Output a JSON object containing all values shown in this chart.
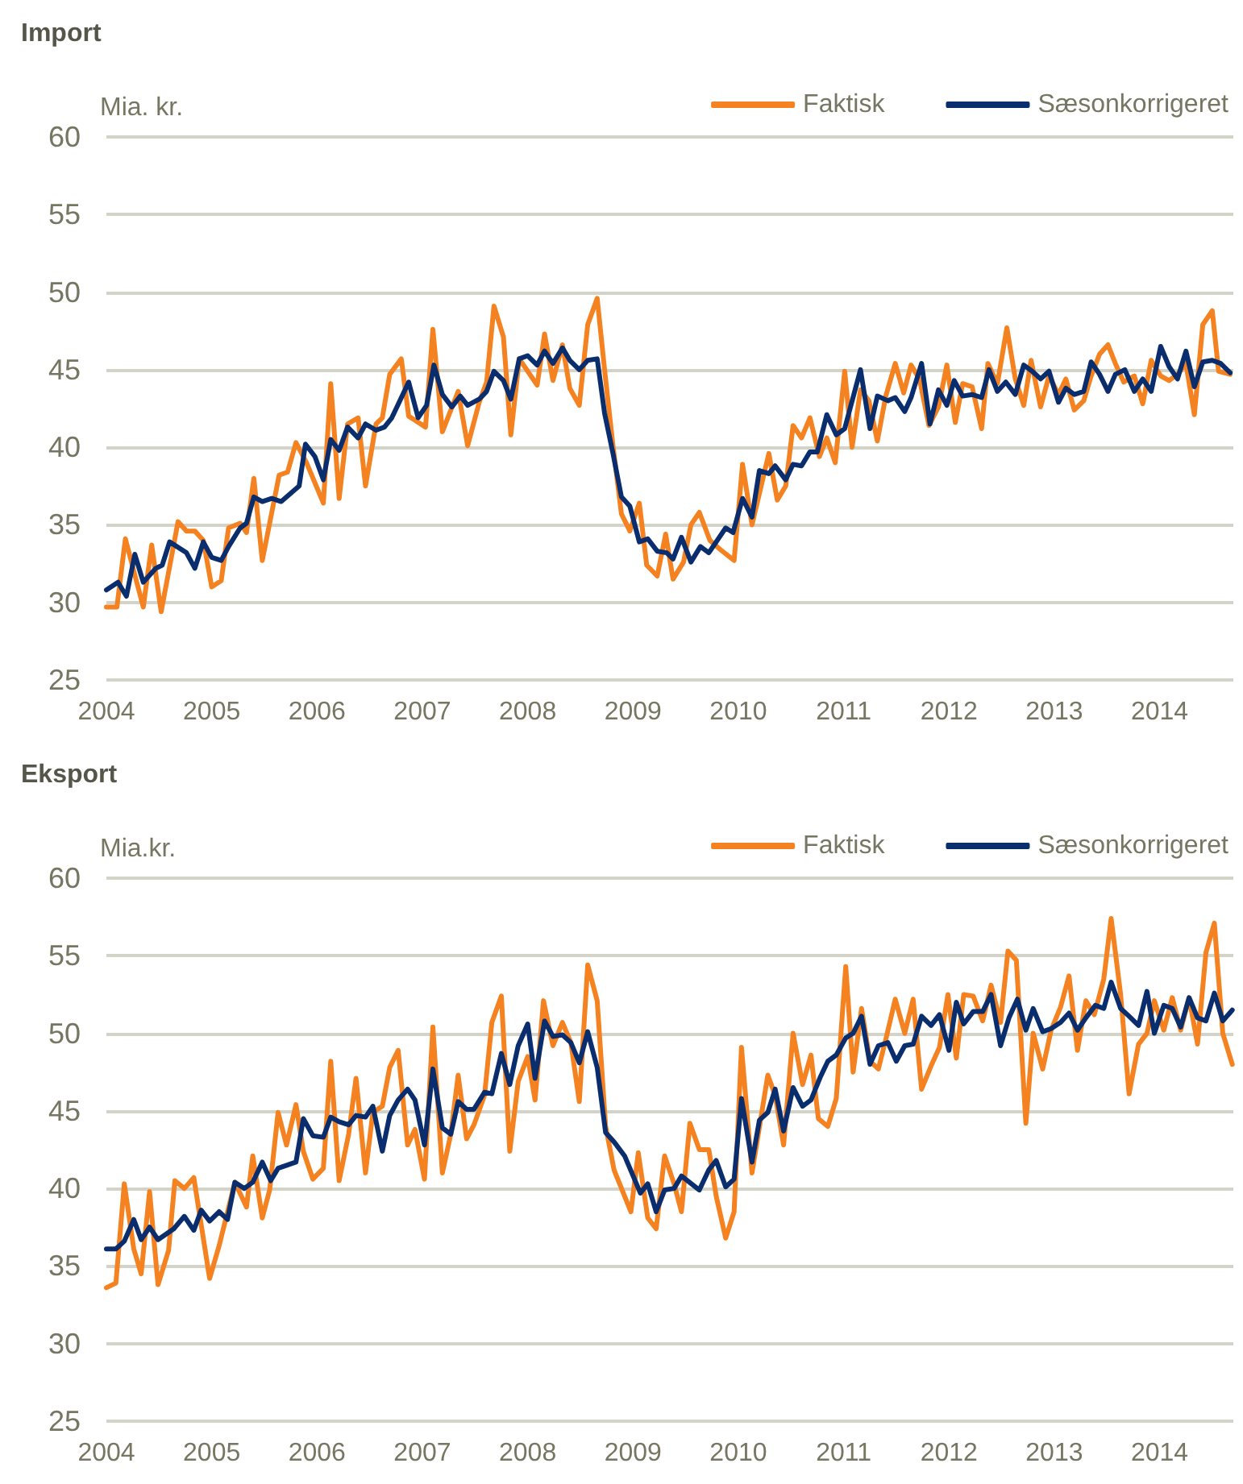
{
  "chart_data": [
    {
      "type": "line",
      "title": "Import",
      "ylabel": "Mia. kr.",
      "xlim": [
        2004,
        2014.7
      ],
      "xticks": [
        2004,
        2005,
        2006,
        2007,
        2008,
        2009,
        2010,
        2011,
        2012,
        2013,
        2014
      ],
      "ylim": [
        25,
        60
      ],
      "yticks": [
        25,
        30,
        35,
        40,
        45,
        50,
        55,
        60
      ],
      "grid": "y",
      "legend": "top right",
      "line_style": "solid",
      "series": [
        {
          "name": "Faktisk",
          "color": "#f58220",
          "x": [
            2004.0,
            2004.1,
            2004.18,
            2004.35,
            2004.43,
            2004.52,
            2004.68,
            2004.76,
            2004.84,
            2004.92,
            2005.0,
            2005.09,
            2005.16,
            2005.27,
            2005.33,
            2005.4,
            2005.48,
            2005.64,
            2005.72,
            2005.8,
            2005.9,
            2006.06,
            2006.13,
            2006.21,
            2006.29,
            2006.39,
            2006.46,
            2006.56,
            2006.62,
            2006.69,
            2006.8,
            2006.87,
            2007.03,
            2007.1,
            2007.19,
            2007.34,
            2007.43,
            2007.54,
            2007.61,
            2007.68,
            2007.77,
            2007.84,
            2007.92,
            2008.0,
            2008.09,
            2008.16,
            2008.24,
            2008.33,
            2008.4,
            2008.49,
            2008.57,
            2008.66,
            2008.73,
            2008.81,
            2008.89,
            2008.97,
            2009.06,
            2009.13,
            2009.23,
            2009.31,
            2009.38,
            2009.48,
            2009.55,
            2009.63,
            2009.73,
            2009.83,
            2009.96,
            2010.04,
            2010.13,
            2010.29,
            2010.37,
            2010.45,
            2010.52,
            2010.6,
            2010.68,
            2010.77,
            2010.84,
            2010.92,
            2011.01,
            2011.08,
            2011.16,
            2011.24,
            2011.32,
            2011.4,
            2011.49,
            2011.57,
            2011.64,
            2011.72,
            2011.81,
            2011.9,
            2011.98,
            2012.06,
            2012.13,
            2012.22,
            2012.31,
            2012.37,
            2012.46,
            2012.55,
            2012.63,
            2012.71,
            2012.78,
            2012.87,
            2012.95,
            2013.04,
            2013.11,
            2013.19,
            2013.28,
            2013.35,
            2013.43,
            2013.51,
            2013.58,
            2013.66,
            2013.76,
            2013.84,
            2013.92,
            2014.01,
            2014.09,
            2014.17,
            2014.25,
            2014.33,
            2014.41,
            2014.5,
            2014.56,
            2014.67
          ],
          "values": [
            29.7,
            29.7,
            34.1,
            29.7,
            33.7,
            29.4,
            35.2,
            34.6,
            34.6,
            34.0,
            31.0,
            31.4,
            34.8,
            35.1,
            34.5,
            38.0,
            32.7,
            38.2,
            38.4,
            40.3,
            39.0,
            36.4,
            44.1,
            36.7,
            41.5,
            41.9,
            37.5,
            41.5,
            41.9,
            44.7,
            45.7,
            42.0,
            41.3,
            47.6,
            41.0,
            43.6,
            40.1,
            42.9,
            44.2,
            49.1,
            47.1,
            40.8,
            45.7,
            44.9,
            44.0,
            47.3,
            44.3,
            46.6,
            43.8,
            42.7,
            47.9,
            49.6,
            45.0,
            40.1,
            35.7,
            34.6,
            36.4,
            32.4,
            31.7,
            34.4,
            31.5,
            32.6,
            35.0,
            35.8,
            34.0,
            33.4,
            32.7,
            38.9,
            35.0,
            39.6,
            36.6,
            37.5,
            41.4,
            40.6,
            41.9,
            39.4,
            40.6,
            39.0,
            44.9,
            40.0,
            43.7,
            43.0,
            40.4,
            43.3,
            45.4,
            43.5,
            45.3,
            44.4,
            41.4,
            42.6,
            45.3,
            41.6,
            44.1,
            43.9,
            41.2,
            45.4,
            44.1,
            47.7,
            44.4,
            42.7,
            45.6,
            42.6,
            44.6,
            43.4,
            44.4,
            42.4,
            43.0,
            44.6,
            46.0,
            46.6,
            45.4,
            44.2,
            44.6,
            42.8,
            45.6,
            44.6,
            44.3,
            44.7,
            45.4,
            42.1,
            47.9,
            48.8,
            44.9,
            44.7
          ]
        },
        {
          "name": "Sæsonkorrigeret",
          "color": "#0a2d6e",
          "x": [
            2004.0,
            2004.11,
            2004.19,
            2004.27,
            2004.35,
            2004.47,
            2004.53,
            2004.6,
            2004.76,
            2004.84,
            2004.92,
            2005.0,
            2005.09,
            2005.16,
            2005.27,
            2005.33,
            2005.4,
            2005.48,
            2005.57,
            2005.66,
            2005.83,
            2005.89,
            2005.98,
            2006.06,
            2006.13,
            2006.21,
            2006.29,
            2006.39,
            2006.46,
            2006.56,
            2006.64,
            2006.71,
            2006.87,
            2006.96,
            2007.04,
            2007.11,
            2007.19,
            2007.28,
            2007.36,
            2007.43,
            2007.54,
            2007.61,
            2007.68,
            2007.77,
            2007.84,
            2007.92,
            2008.0,
            2008.09,
            2008.16,
            2008.24,
            2008.33,
            2008.4,
            2008.49,
            2008.57,
            2008.66,
            2008.73,
            2008.81,
            2008.89,
            2008.97,
            2009.06,
            2009.14,
            2009.23,
            2009.32,
            2009.38,
            2009.46,
            2009.55,
            2009.64,
            2009.72,
            2009.88,
            2009.95,
            2010.04,
            2010.13,
            2010.2,
            2010.29,
            2010.35,
            2010.45,
            2010.52,
            2010.6,
            2010.68,
            2010.75,
            2010.84,
            2010.93,
            2011.01,
            2011.16,
            2011.25,
            2011.32,
            2011.42,
            2011.49,
            2011.58,
            2011.64,
            2011.74,
            2011.82,
            2011.9,
            2011.98,
            2012.05,
            2012.13,
            2012.22,
            2012.31,
            2012.38,
            2012.46,
            2012.54,
            2012.63,
            2012.71,
            2012.79,
            2012.87,
            2012.95,
            2013.04,
            2013.11,
            2013.19,
            2013.28,
            2013.35,
            2013.43,
            2013.51,
            2013.58,
            2013.67,
            2013.76,
            2013.84,
            2013.92,
            2014.01,
            2014.09,
            2014.17,
            2014.25,
            2014.33,
            2014.41,
            2014.5,
            2014.58,
            2014.67
          ],
          "values": [
            30.8,
            31.3,
            30.4,
            33.1,
            31.3,
            32.2,
            32.4,
            33.9,
            33.2,
            32.2,
            33.9,
            32.9,
            32.7,
            33.6,
            34.8,
            35.1,
            36.8,
            36.5,
            36.7,
            36.5,
            37.5,
            40.2,
            39.4,
            37.9,
            40.5,
            39.8,
            41.3,
            40.6,
            41.5,
            41.1,
            41.3,
            41.9,
            44.2,
            41.9,
            42.7,
            45.3,
            43.4,
            42.6,
            43.3,
            42.7,
            43.1,
            43.6,
            44.9,
            44.3,
            43.1,
            45.7,
            45.9,
            45.3,
            46.2,
            45.4,
            46.4,
            45.6,
            45.0,
            45.6,
            45.7,
            42.2,
            39.6,
            36.8,
            36.2,
            33.9,
            34.1,
            33.3,
            33.2,
            32.8,
            34.2,
            32.6,
            33.6,
            33.2,
            34.8,
            34.5,
            36.7,
            35.5,
            38.5,
            38.3,
            38.8,
            37.9,
            38.9,
            38.8,
            39.7,
            39.7,
            42.1,
            40.8,
            41.2,
            45.0,
            41.2,
            43.3,
            43.0,
            43.2,
            42.3,
            43.2,
            45.4,
            41.5,
            43.7,
            42.7,
            44.3,
            43.3,
            43.4,
            43.2,
            45.0,
            43.6,
            44.2,
            43.4,
            45.3,
            44.9,
            44.4,
            44.9,
            42.9,
            43.8,
            43.4,
            43.6,
            45.5,
            44.7,
            43.6,
            44.7,
            45.0,
            43.6,
            44.4,
            43.6,
            46.5,
            45.2,
            44.4,
            46.2,
            43.9,
            45.5,
            45.6,
            45.4,
            44.8
          ]
        }
      ]
    },
    {
      "type": "line",
      "title": "Eksport",
      "ylabel": "Mia.kr.",
      "xlim": [
        2004,
        2014.7
      ],
      "xticks": [
        2004,
        2005,
        2006,
        2007,
        2008,
        2009,
        2010,
        2011,
        2012,
        2013,
        2014
      ],
      "ylim": [
        25,
        60
      ],
      "yticks": [
        25,
        30,
        35,
        40,
        45,
        50,
        55,
        60
      ],
      "grid": "y",
      "legend": "top right",
      "line_style": "solid",
      "series": [
        {
          "name": "Faktisk",
          "color": "#f58220",
          "x": [
            2004.0,
            2004.09,
            2004.17,
            2004.26,
            2004.33,
            2004.41,
            2004.49,
            2004.59,
            2004.65,
            2004.74,
            2004.83,
            2004.89,
            2004.98,
            2005.07,
            2005.22,
            2005.33,
            2005.39,
            2005.48,
            2005.55,
            2005.63,
            2005.71,
            2005.8,
            2005.87,
            2005.96,
            2006.06,
            2006.13,
            2006.21,
            2006.3,
            2006.37,
            2006.46,
            2006.53,
            2006.62,
            2006.69,
            2006.77,
            2006.86,
            2006.93,
            2007.02,
            2007.1,
            2007.19,
            2007.27,
            2007.34,
            2007.42,
            2007.49,
            2007.59,
            2007.66,
            2007.75,
            2007.83,
            2007.91,
            2008.0,
            2008.07,
            2008.15,
            2008.24,
            2008.33,
            2008.41,
            2008.49,
            2008.57,
            2008.66,
            2008.74,
            2008.82,
            2008.98,
            2009.05,
            2009.14,
            2009.22,
            2009.3,
            2009.39,
            2009.46,
            2009.54,
            2009.63,
            2009.72,
            2009.79,
            2009.88,
            2009.96,
            2010.03,
            2010.13,
            2010.28,
            2010.35,
            2010.43,
            2010.52,
            2010.61,
            2010.69,
            2010.76,
            2010.85,
            2010.93,
            2011.02,
            2011.09,
            2011.17,
            2011.25,
            2011.33,
            2011.4,
            2011.49,
            2011.58,
            2011.66,
            2011.74,
            2011.83,
            2011.91,
            2011.99,
            2012.07,
            2012.14,
            2012.23,
            2012.32,
            2012.4,
            2012.49,
            2012.56,
            2012.64,
            2012.73,
            2012.8,
            2012.89,
            2012.97,
            2013.06,
            2013.14,
            2013.22,
            2013.3,
            2013.38,
            2013.47,
            2013.54,
            2013.63,
            2013.71,
            2013.8,
            2013.88,
            2013.95,
            2014.04,
            2014.12,
            2014.2,
            2014.28,
            2014.36,
            2014.44,
            2014.52,
            2014.6,
            2014.69
          ],
          "values": [
            33.6,
            33.9,
            40.3,
            36.1,
            34.5,
            39.8,
            33.8,
            36.0,
            40.5,
            40.0,
            40.7,
            38.1,
            34.2,
            36.3,
            40.4,
            38.8,
            42.1,
            38.1,
            39.9,
            44.9,
            42.8,
            45.4,
            42.4,
            40.6,
            41.3,
            48.2,
            40.5,
            43.5,
            47.1,
            41.0,
            44.9,
            45.3,
            47.8,
            48.9,
            42.8,
            43.8,
            40.6,
            50.4,
            41.0,
            43.5,
            47.3,
            43.2,
            44.1,
            46.0,
            50.7,
            52.4,
            42.4,
            46.9,
            48.5,
            45.7,
            52.1,
            49.2,
            50.7,
            49.4,
            45.6,
            54.4,
            52.1,
            44.0,
            41.2,
            38.5,
            42.3,
            38.1,
            37.4,
            42.1,
            40.3,
            38.5,
            44.2,
            42.5,
            42.5,
            39.5,
            36.8,
            38.5,
            49.1,
            41.0,
            47.3,
            46.0,
            42.8,
            50.0,
            46.7,
            48.6,
            44.5,
            44.0,
            45.8,
            54.3,
            47.5,
            51.6,
            48.2,
            47.7,
            49.6,
            52.2,
            50.0,
            52.2,
            46.4,
            47.9,
            49.1,
            52.5,
            48.4,
            52.5,
            52.4,
            50.8,
            53.1,
            50.7,
            55.3,
            54.7,
            44.2,
            50.0,
            47.7,
            50.2,
            51.7,
            53.7,
            48.9,
            52.1,
            51.2,
            53.5,
            57.4,
            52.5,
            46.1,
            49.3,
            50.0,
            52.1,
            50.2,
            52.3,
            50.2,
            52.3,
            49.3,
            55.2,
            57.1,
            50.0,
            48.0
          ]
        },
        {
          "name": "Sæsonkorrigeret",
          "color": "#0a2d6e",
          "x": [
            2004.0,
            2004.09,
            2004.17,
            2004.26,
            2004.33,
            2004.41,
            2004.49,
            2004.64,
            2004.74,
            2004.83,
            2004.9,
            2004.98,
            2005.07,
            2005.15,
            2005.22,
            2005.31,
            2005.39,
            2005.48,
            2005.56,
            2005.63,
            2005.8,
            2005.87,
            2005.96,
            2006.06,
            2006.13,
            2006.21,
            2006.3,
            2006.37,
            2006.46,
            2006.53,
            2006.62,
            2006.69,
            2006.77,
            2006.86,
            2006.93,
            2007.02,
            2007.1,
            2007.19,
            2007.27,
            2007.34,
            2007.42,
            2007.49,
            2007.59,
            2007.66,
            2007.75,
            2007.83,
            2007.91,
            2008.0,
            2008.07,
            2008.16,
            2008.24,
            2008.33,
            2008.41,
            2008.49,
            2008.57,
            2008.66,
            2008.74,
            2008.82,
            2008.92,
            2009.07,
            2009.14,
            2009.22,
            2009.3,
            2009.39,
            2009.46,
            2009.63,
            2009.72,
            2009.79,
            2009.88,
            2009.96,
            2010.03,
            2010.13,
            2010.2,
            2010.28,
            2010.35,
            2010.43,
            2010.52,
            2010.61,
            2010.69,
            2010.78,
            2010.85,
            2010.93,
            2011.02,
            2011.09,
            2011.17,
            2011.25,
            2011.33,
            2011.42,
            2011.5,
            2011.58,
            2011.66,
            2011.74,
            2011.83,
            2011.91,
            2012.0,
            2012.07,
            2012.14,
            2012.23,
            2012.32,
            2012.4,
            2012.49,
            2012.57,
            2012.65,
            2012.73,
            2012.8,
            2012.89,
            2012.97,
            2013.06,
            2013.14,
            2013.22,
            2013.3,
            2013.39,
            2013.47,
            2013.54,
            2013.63,
            2013.71,
            2013.8,
            2013.88,
            2013.95,
            2014.04,
            2014.12,
            2014.2,
            2014.28,
            2014.36,
            2014.44,
            2014.52,
            2014.6,
            2014.69
          ],
          "values": [
            36.1,
            36.1,
            36.6,
            38.0,
            36.7,
            37.5,
            36.7,
            37.4,
            38.2,
            37.3,
            38.6,
            37.9,
            38.5,
            38.0,
            40.4,
            40.0,
            40.4,
            41.7,
            40.5,
            41.3,
            41.7,
            44.5,
            43.4,
            43.3,
            44.6,
            44.3,
            44.1,
            44.7,
            44.6,
            45.3,
            42.4,
            44.7,
            45.7,
            46.4,
            45.7,
            42.8,
            47.7,
            43.9,
            43.5,
            45.6,
            45.1,
            45.1,
            46.2,
            46.1,
            48.7,
            46.7,
            49.2,
            50.6,
            47.1,
            50.8,
            49.8,
            49.9,
            49.4,
            48.1,
            50.1,
            47.8,
            43.6,
            43.0,
            42.1,
            39.7,
            40.3,
            38.5,
            39.9,
            40.0,
            40.8,
            39.9,
            41.2,
            41.8,
            40.1,
            40.6,
            45.8,
            41.7,
            44.4,
            44.9,
            46.4,
            43.7,
            46.5,
            45.3,
            45.7,
            47.2,
            48.2,
            48.6,
            49.7,
            50.0,
            51.1,
            48.0,
            49.2,
            49.4,
            48.2,
            49.2,
            49.3,
            51.1,
            50.5,
            51.2,
            48.9,
            52.0,
            50.6,
            51.4,
            51.4,
            52.5,
            49.2,
            51.0,
            52.2,
            50.2,
            51.6,
            50.1,
            50.3,
            50.7,
            51.3,
            50.2,
            51.0,
            51.8,
            51.6,
            53.3,
            51.6,
            51.1,
            50.5,
            52.7,
            50.0,
            51.8,
            51.6,
            50.4,
            52.3,
            51.0,
            50.8,
            52.6,
            50.8,
            51.5
          ]
        }
      ]
    }
  ]
}
